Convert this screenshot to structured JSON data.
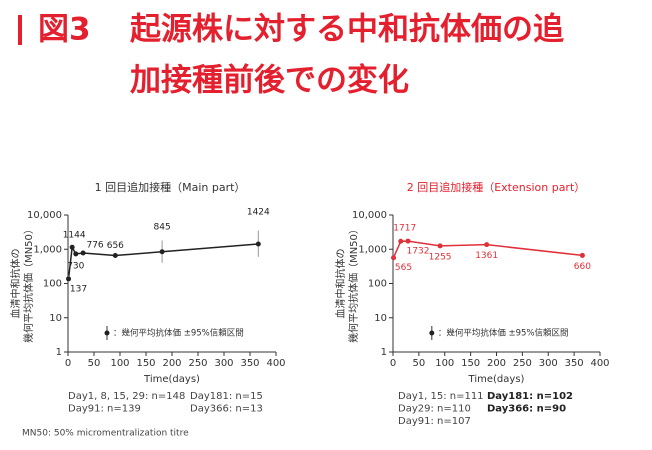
{
  "header": {
    "figure_label": "図3",
    "title": [
      "起源株に対する中和抗体価の追",
      "加接種前後での変化"
    ]
  },
  "chart_data": [
    {
      "type": "line",
      "title": "1 回目追加接種（Main part）",
      "title_color": "#333333",
      "x": [
        1,
        8,
        15,
        29,
        91,
        181,
        366
      ],
      "series": [
        {
          "name": "：幾何平均抗体価 ±95%信頼区間",
          "color": "#222222",
          "values": [
            137,
            1144,
            730,
            776,
            656,
            845,
            1424
          ],
          "ci_low": [
            110,
            1000,
            650,
            700,
            560,
            400,
            600
          ],
          "ci_high": [
            170,
            1300,
            820,
            860,
            770,
            1800,
            3500
          ]
        }
      ],
      "log_y": true,
      "ylim": [
        1,
        10000
      ],
      "yticks": [
        1,
        10,
        100,
        {
          "value": 1000,
          "label": "1,000"
        },
        {
          "value": 10000,
          "label": "10,000"
        }
      ],
      "xlim": [
        0,
        400
      ],
      "xticks": [
        0,
        50,
        100,
        150,
        200,
        250,
        300,
        350,
        400
      ],
      "xlabel": "Time(days)",
      "ylabel": [
        "血清中和抗体の",
        "幾何平均抗体価（MN50）"
      ],
      "notes": [
        [
          "Day1, 8, 15, 29: n=148",
          "Day91: n=139"
        ],
        [
          "Day181: n=15",
          "Day366: n=13"
        ]
      ]
    },
    {
      "type": "line",
      "title": "2 回目追加接種（Extension part）",
      "title_color": "#e5202e",
      "x": [
        1,
        15,
        29,
        91,
        181,
        366
      ],
      "series": [
        {
          "name": "：幾何平均抗体価 ±95%信頼区間",
          "color": "#e0303a",
          "values": [
            565,
            1717,
            1732,
            1255,
            1361,
            660
          ],
          "ci_low": [
            500,
            1550,
            1580,
            1100,
            1180,
            560
          ],
          "ci_high": [
            640,
            1900,
            1900,
            1430,
            1570,
            780
          ]
        }
      ],
      "log_y": true,
      "ylim": [
        1,
        10000
      ],
      "yticks": [
        1,
        10,
        100,
        {
          "value": 1000,
          "label": "1,000"
        },
        {
          "value": 10000,
          "label": "10,000"
        }
      ],
      "xlim": [
        0,
        400
      ],
      "xticks": [
        0,
        50,
        100,
        150,
        200,
        250,
        300,
        350,
        400
      ],
      "xlabel": "Time(days)",
      "ylabel": [
        "血清中和抗体の",
        "幾何平均抗体価（MN50）"
      ],
      "notes": [
        [
          "Day1, 15: n=111",
          "Day29: n=110",
          "Day91: n=107"
        ],
        [
          "Day181: n=102",
          "Day366: n=90"
        ]
      ]
    }
  ],
  "footnote": "MN50: 50% micromentralization titre"
}
